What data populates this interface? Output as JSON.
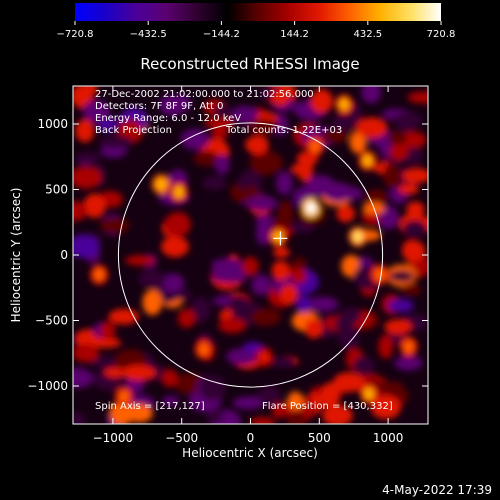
{
  "colorbar": {
    "min": -720.8,
    "max": 720.8,
    "tick_labels": [
      "−720.8",
      "−432.5",
      "−144.2",
      "144.2",
      "432.5",
      "720.8"
    ],
    "colors": [
      "#0000ff",
      "#1a00c8",
      "#4a009a",
      "#5a0070",
      "#300030",
      "#000000",
      "#5a0000",
      "#a80000",
      "#e01800",
      "#ff6000",
      "#ffb000",
      "#ffe060",
      "#ffffff"
    ]
  },
  "chart_data": {
    "type": "heatmap",
    "title": "Reconstructed RHESSI Image",
    "xlabel": "Heliocentric X (arcsec)",
    "ylabel": "Heliocentric Y (arcsec)",
    "xlim": [
      -1290,
      1290
    ],
    "ylim": [
      -1290,
      1290
    ],
    "x_ticks": [
      -1000,
      -500,
      0,
      500,
      1000
    ],
    "y_ticks": [
      -1000,
      -500,
      0,
      500,
      1000
    ],
    "x_tick_labels": [
      "−1000",
      "−500",
      "0",
      "500",
      "1000"
    ],
    "y_tick_labels": [
      "−1000",
      "−500",
      "0",
      "500",
      "1000"
    ],
    "solar_limb_radius": 960,
    "marker": {
      "x": 217,
      "y": 127
    },
    "peaks": [
      {
        "x": 440,
        "y": 360,
        "value": 720.8
      },
      {
        "x": 780,
        "y": 140,
        "value": 560
      },
      {
        "x": -650,
        "y": 540,
        "value": 520
      },
      {
        "x": -520,
        "y": 480,
        "value": 430
      },
      {
        "x": 200,
        "y": 140,
        "value": 480
      },
      {
        "x": 850,
        "y": 720,
        "value": 470
      },
      {
        "x": 680,
        "y": 1150,
        "value": 460
      },
      {
        "x": -920,
        "y": -1080,
        "value": 420
      },
      {
        "x": 860,
        "y": -1060,
        "value": 440
      },
      {
        "x": -340,
        "y": -720,
        "value": 380
      },
      {
        "x": 940,
        "y": -150,
        "value": 400
      },
      {
        "x": 1150,
        "y": -700,
        "value": 380
      },
      {
        "x": -1100,
        "y": -150,
        "value": 340
      },
      {
        "x": 280,
        "y": -300,
        "value": 300
      },
      {
        "x": 460,
        "y": -560,
        "value": 300
      },
      {
        "x": 470,
        "y": 830,
        "value": 380
      },
      {
        "x": 220,
        "y": -120,
        "value": 300
      },
      {
        "x": 100,
        "y": -780,
        "value": 290
      }
    ],
    "annotations": {
      "time_range": "27-Dec-2002 21:02:00.000 to 21:02:56.000",
      "detectors": "Detectors: 7F 8F 9F, Att 0",
      "energy": "Energy Range: 6.0 - 12.0 keV",
      "method": "Back Projection",
      "counts": "Total counts: 1.22E+03",
      "spin_axis": "Spin Axis = [217,127]",
      "flare_position": "Flare Position = [430,332]"
    }
  },
  "footer": {
    "timestamp": "4-May-2022 17:39"
  }
}
